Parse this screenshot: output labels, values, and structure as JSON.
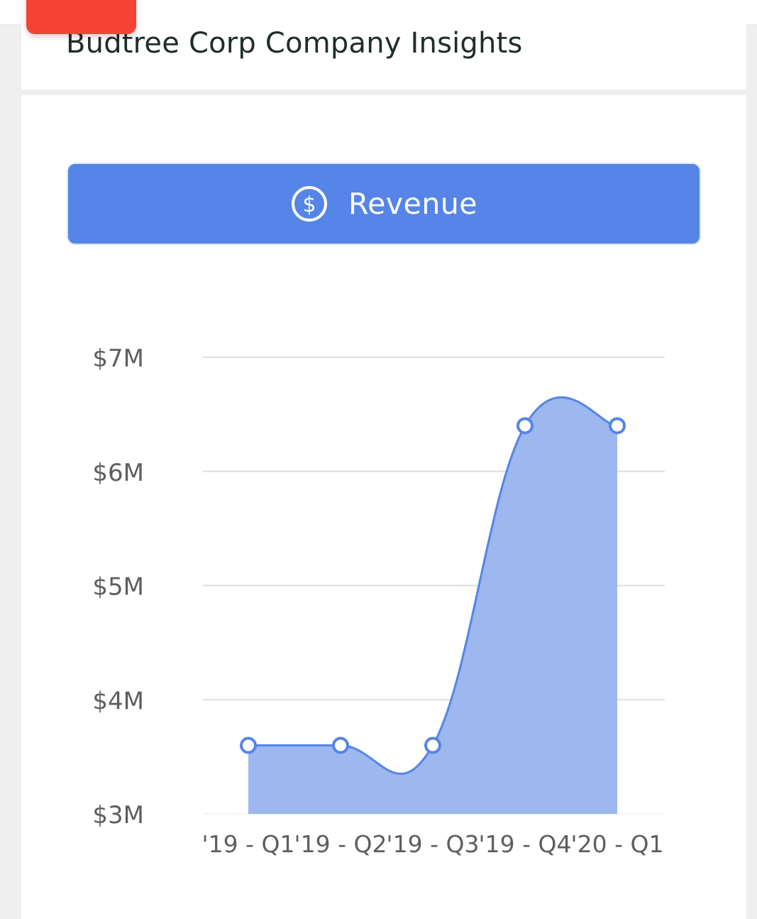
{
  "header": {
    "title": "Budtree Corp Company Insights"
  },
  "metric_button": {
    "label": "Revenue",
    "icon": "dollar-circle-icon"
  },
  "colors": {
    "accent": "#5585e6",
    "fill": "#9db7ef",
    "line": "#5585e6",
    "notification": "#f44336"
  },
  "chart_data": {
    "type": "area",
    "title": "",
    "xlabel": "",
    "ylabel": "",
    "categories": [
      "'19 - Q1",
      "'19 - Q2",
      "'19 - Q3",
      "'19 - Q4",
      "'20 - Q1"
    ],
    "values": [
      3.6,
      3.6,
      3.6,
      6.4,
      6.4
    ],
    "ylim": [
      3,
      7
    ],
    "yticks": [
      3,
      4,
      5,
      6,
      7
    ],
    "ytick_labels": [
      "$3M",
      "$4M",
      "$5M",
      "$6M",
      "$7M"
    ],
    "grid": true,
    "legend": "none"
  }
}
